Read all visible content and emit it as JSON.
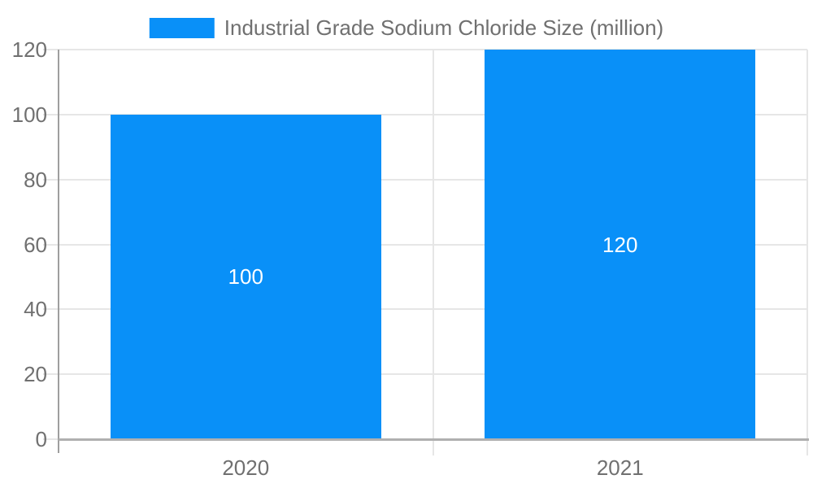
{
  "legend": {
    "label": "Industrial Grade Sodium Chloride Size (million)"
  },
  "chart_data": {
    "type": "bar",
    "title": "Industrial Grade Sodium Chloride Size (million)",
    "categories": [
      "2020",
      "2021"
    ],
    "series": [
      {
        "name": "Industrial Grade Sodium Chloride Size (million)",
        "values": [
          100,
          120
        ]
      }
    ],
    "bar_labels": [
      "100",
      "120"
    ],
    "xlabel": "",
    "ylabel": "",
    "ylim": [
      0,
      120
    ],
    "yticks": [
      0,
      20,
      40,
      60,
      80,
      100,
      120
    ],
    "grid": true,
    "legend_position": "top-center",
    "colors": {
      "bar": "#0990f8",
      "grid": "#e6e6e6",
      "axis": "#9e9e9e",
      "baseline": "#b0b0b0",
      "text": "#707070",
      "bar_label": "#ffffff",
      "background": "#ffffff"
    }
  }
}
